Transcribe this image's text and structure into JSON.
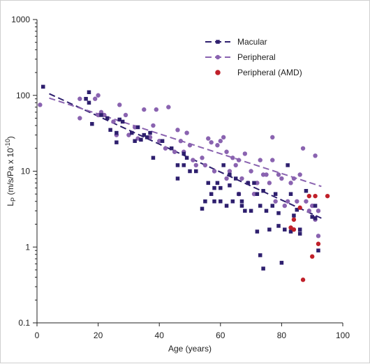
{
  "chart_data": {
    "type": "scatter",
    "xlabel": "Age (years)",
    "ylabel": "L_P (m/s/Pa x 10^-10)",
    "ylabel_parts": {
      "main": "L",
      "sub": "P",
      "units": " (m/s/Pa x 10",
      "exp": "-10",
      "close": ")"
    },
    "xlim": [
      0,
      100
    ],
    "ylim": [
      0.1,
      1000
    ],
    "yscale": "log",
    "x_ticks": [
      "0",
      "20",
      "40",
      "60",
      "80",
      "100"
    ],
    "y_ticks": [
      "0.1",
      "1",
      "10",
      "100",
      "1000"
    ],
    "grid": false,
    "legend_position": "top-right",
    "series": [
      {
        "name": "Macular",
        "marker": "square",
        "color": "#2e1f6e",
        "trendline": {
          "style": "dashed",
          "x": [
            4,
            93
          ],
          "y": [
            105,
            2.4
          ]
        },
        "points": [
          [
            2,
            130
          ],
          [
            16,
            90
          ],
          [
            17,
            80
          ],
          [
            17,
            110
          ],
          [
            18,
            42
          ],
          [
            21,
            55
          ],
          [
            23,
            50
          ],
          [
            24,
            35
          ],
          [
            26,
            32
          ],
          [
            26,
            24
          ],
          [
            27,
            48
          ],
          [
            28,
            45
          ],
          [
            31,
            32
          ],
          [
            32,
            25
          ],
          [
            33,
            38
          ],
          [
            34,
            26
          ],
          [
            35,
            30
          ],
          [
            36,
            28
          ],
          [
            37,
            32
          ],
          [
            38,
            15
          ],
          [
            41,
            25
          ],
          [
            44,
            20
          ],
          [
            46,
            8
          ],
          [
            46,
            12
          ],
          [
            48,
            17
          ],
          [
            48,
            12
          ],
          [
            49,
            15
          ],
          [
            50,
            10
          ],
          [
            52,
            10
          ],
          [
            54,
            3.2
          ],
          [
            55,
            4
          ],
          [
            56,
            7
          ],
          [
            57,
            5
          ],
          [
            58,
            6
          ],
          [
            58,
            4
          ],
          [
            59,
            7
          ],
          [
            60,
            4
          ],
          [
            60,
            6
          ],
          [
            61,
            12
          ],
          [
            62,
            3.5
          ],
          [
            63,
            6.5
          ],
          [
            63,
            9
          ],
          [
            64,
            4
          ],
          [
            65,
            8
          ],
          [
            66,
            5
          ],
          [
            67,
            4
          ],
          [
            67,
            3.5
          ],
          [
            68,
            3
          ],
          [
            69,
            7
          ],
          [
            70,
            3
          ],
          [
            71,
            7
          ],
          [
            72,
            5
          ],
          [
            72,
            1.6
          ],
          [
            73,
            0.78
          ],
          [
            73,
            3.5
          ],
          [
            74,
            5.5
          ],
          [
            74,
            0.52
          ],
          [
            75,
            3
          ],
          [
            76,
            1.7
          ],
          [
            77,
            3.5
          ],
          [
            78,
            5
          ],
          [
            79,
            1.9
          ],
          [
            79,
            2.8
          ],
          [
            80,
            0.62
          ],
          [
            81,
            1.7
          ],
          [
            82,
            12
          ],
          [
            83,
            5
          ],
          [
            83,
            1.6
          ],
          [
            84,
            2.6
          ],
          [
            85,
            3.1
          ],
          [
            86,
            1.7
          ],
          [
            86,
            1.5
          ],
          [
            88,
            5.5
          ],
          [
            90,
            2.5
          ],
          [
            91,
            3.5
          ],
          [
            91,
            2.4
          ],
          [
            92,
            0.9
          ]
        ]
      },
      {
        "name": "Peripheral",
        "marker": "circle",
        "color": "#8a63b0",
        "trendline": {
          "style": "dashed",
          "x": [
            4,
            93
          ],
          "y": [
            92,
            6.3
          ]
        },
        "points": [
          [
            1,
            75
          ],
          [
            14,
            90
          ],
          [
            14,
            50
          ],
          [
            19,
            90
          ],
          [
            20,
            55
          ],
          [
            20,
            100
          ],
          [
            21,
            60
          ],
          [
            22,
            55
          ],
          [
            25,
            45
          ],
          [
            26,
            30
          ],
          [
            27,
            75
          ],
          [
            29,
            55
          ],
          [
            30,
            30
          ],
          [
            32,
            38
          ],
          [
            33,
            27
          ],
          [
            35,
            65
          ],
          [
            37,
            28
          ],
          [
            38,
            40
          ],
          [
            39,
            65
          ],
          [
            40,
            25
          ],
          [
            42,
            20
          ],
          [
            43,
            70
          ],
          [
            45,
            18
          ],
          [
            46,
            35
          ],
          [
            47,
            25
          ],
          [
            48,
            18
          ],
          [
            49,
            32
          ],
          [
            50,
            22
          ],
          [
            51,
            14
          ],
          [
            52,
            12
          ],
          [
            54,
            15
          ],
          [
            55,
            12
          ],
          [
            56,
            27
          ],
          [
            57,
            24
          ],
          [
            58,
            10
          ],
          [
            59,
            22
          ],
          [
            60,
            25
          ],
          [
            61,
            28
          ],
          [
            62,
            18
          ],
          [
            62,
            8
          ],
          [
            63,
            10
          ],
          [
            64,
            15
          ],
          [
            65,
            12
          ],
          [
            66,
            5
          ],
          [
            66,
            14
          ],
          [
            67,
            8
          ],
          [
            68,
            17
          ],
          [
            69,
            7
          ],
          [
            70,
            10
          ],
          [
            71,
            5
          ],
          [
            72,
            7
          ],
          [
            73,
            14
          ],
          [
            74,
            9
          ],
          [
            75,
            9
          ],
          [
            76,
            7
          ],
          [
            77,
            14
          ],
          [
            77,
            28
          ],
          [
            78,
            4
          ],
          [
            79,
            9
          ],
          [
            80,
            8
          ],
          [
            81,
            3.5
          ],
          [
            82,
            4
          ],
          [
            83,
            7
          ],
          [
            84,
            8
          ],
          [
            85,
            4
          ],
          [
            86,
            9
          ],
          [
            87,
            20
          ],
          [
            88,
            4
          ],
          [
            89,
            3
          ],
          [
            90,
            3.5
          ],
          [
            91,
            2.3
          ],
          [
            91,
            16
          ],
          [
            92,
            3
          ],
          [
            92,
            1.4
          ]
        ]
      },
      {
        "name": "Peripheral (AMD)",
        "marker": "circle",
        "color": "#c0202a",
        "points": [
          [
            83,
            1.8
          ],
          [
            84,
            1.7
          ],
          [
            84,
            2.3
          ],
          [
            86,
            3.3
          ],
          [
            87,
            0.37
          ],
          [
            89,
            4.7
          ],
          [
            90,
            0.75
          ],
          [
            91,
            4.7
          ],
          [
            92,
            1.1
          ],
          [
            95,
            4.7
          ]
        ]
      }
    ]
  }
}
